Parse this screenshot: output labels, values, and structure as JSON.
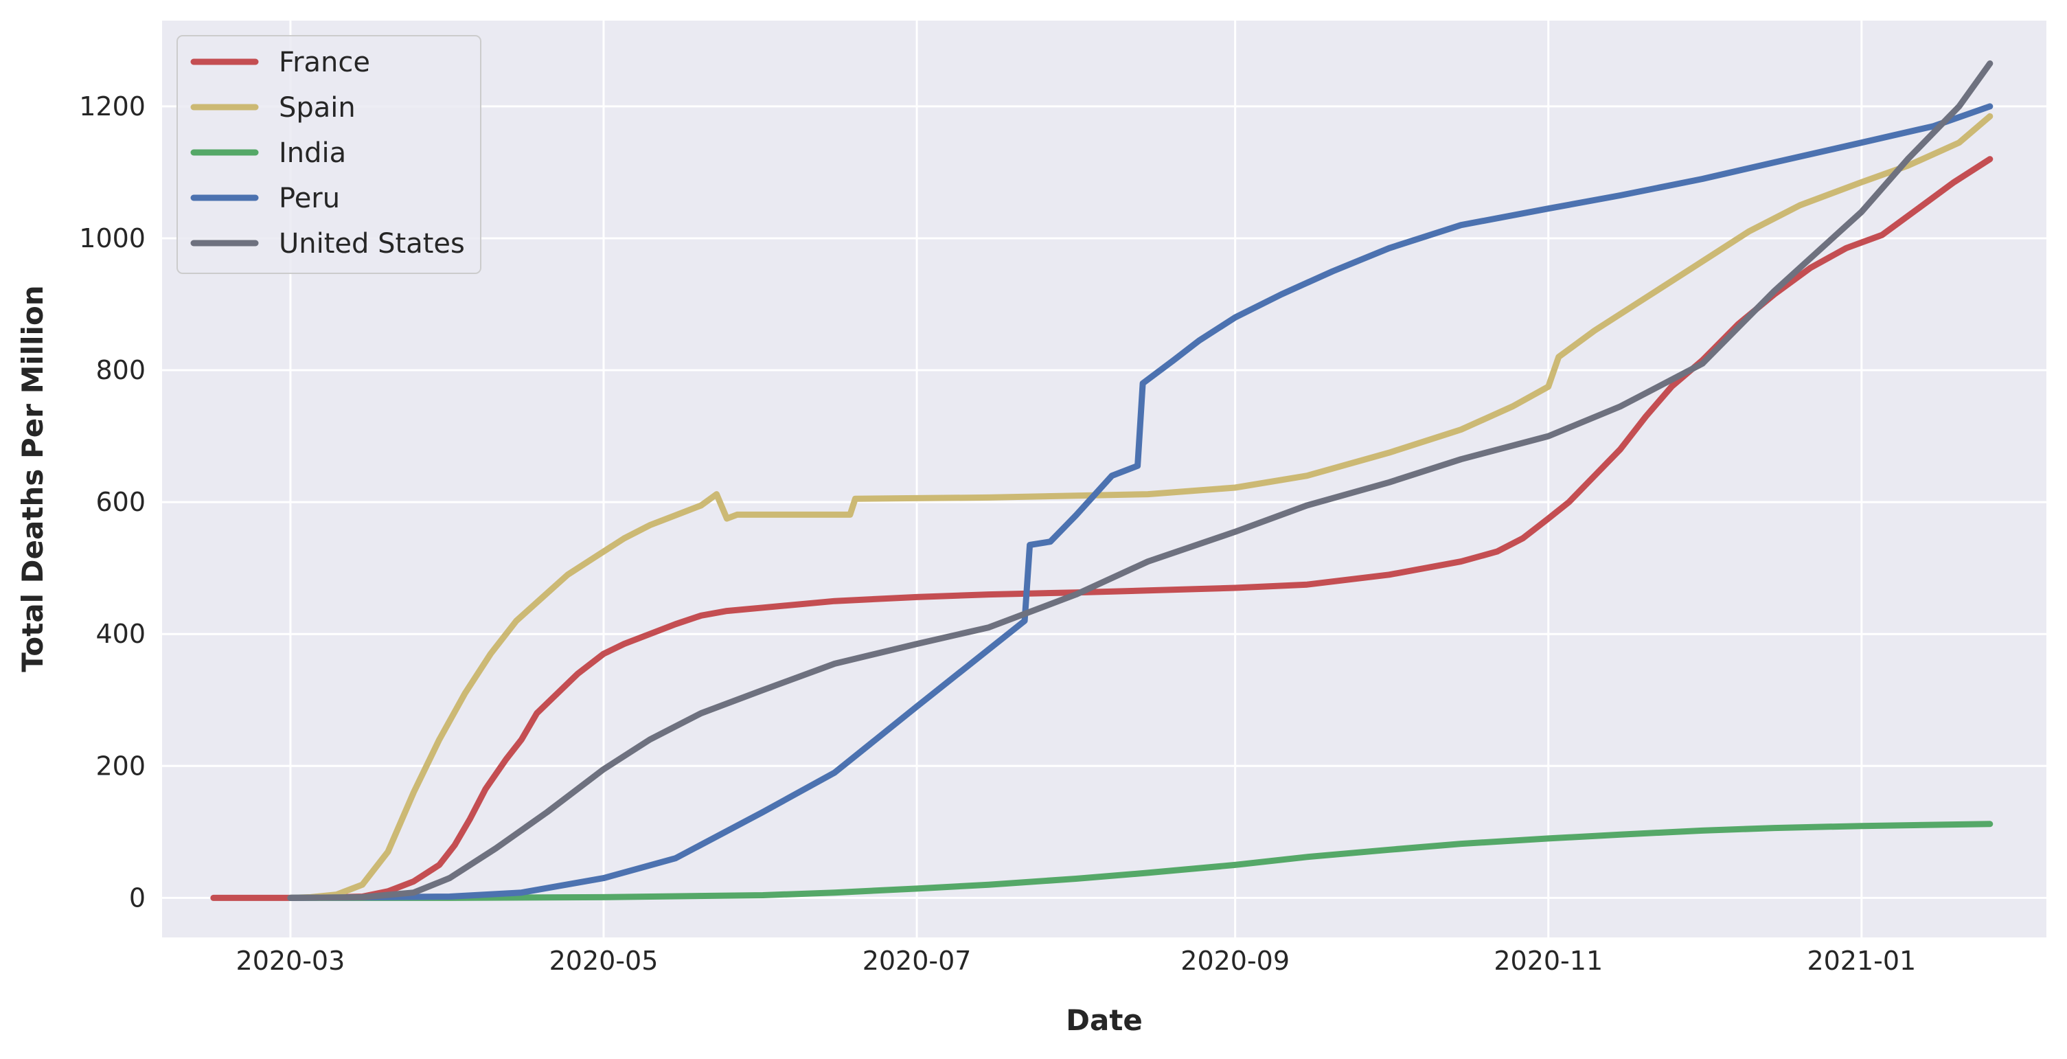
{
  "chart_data": {
    "type": "line",
    "title": "",
    "xlabel": "Date",
    "ylabel": "Total Deaths Per Million",
    "x_axis_type": "date",
    "xlim": [
      "2020-02-05",
      "2021-02-06"
    ],
    "ylim": [
      -60,
      1330
    ],
    "x_ticks": [
      "2020-03-01",
      "2020-05-01",
      "2020-07-01",
      "2020-09-01",
      "2020-11-01",
      "2021-01-01"
    ],
    "x_tick_labels": [
      "2020-03",
      "2020-05",
      "2020-07",
      "2020-09",
      "2020-11",
      "2021-01"
    ],
    "y_ticks": [
      0,
      200,
      400,
      600,
      800,
      1000,
      1200
    ],
    "y_tick_labels": [
      "0",
      "200",
      "400",
      "600",
      "800",
      "1000",
      "1200"
    ],
    "grid": true,
    "background": "#eaeaf2",
    "legend_position": "upper-left",
    "series": [
      {
        "name": "France",
        "color": "#c44e52",
        "points": [
          [
            "2020-02-15",
            0
          ],
          [
            "2020-03-01",
            0
          ],
          [
            "2020-03-10",
            1
          ],
          [
            "2020-03-15",
            2
          ],
          [
            "2020-03-20",
            10
          ],
          [
            "2020-03-25",
            25
          ],
          [
            "2020-03-30",
            50
          ],
          [
            "2020-04-02",
            80
          ],
          [
            "2020-04-05",
            120
          ],
          [
            "2020-04-08",
            165
          ],
          [
            "2020-04-12",
            210
          ],
          [
            "2020-04-15",
            240
          ],
          [
            "2020-04-18",
            280
          ],
          [
            "2020-04-22",
            310
          ],
          [
            "2020-04-26",
            340
          ],
          [
            "2020-05-01",
            370
          ],
          [
            "2020-05-05",
            385
          ],
          [
            "2020-05-10",
            400
          ],
          [
            "2020-05-15",
            415
          ],
          [
            "2020-05-20",
            428
          ],
          [
            "2020-05-25",
            435
          ],
          [
            "2020-06-01",
            440
          ],
          [
            "2020-06-15",
            450
          ],
          [
            "2020-07-01",
            456
          ],
          [
            "2020-07-15",
            460
          ],
          [
            "2020-08-01",
            463
          ],
          [
            "2020-08-15",
            466
          ],
          [
            "2020-09-01",
            470
          ],
          [
            "2020-09-15",
            475
          ],
          [
            "2020-10-01",
            490
          ],
          [
            "2020-10-15",
            510
          ],
          [
            "2020-10-22",
            525
          ],
          [
            "2020-10-27",
            545
          ],
          [
            "2020-11-01",
            575
          ],
          [
            "2020-11-05",
            600
          ],
          [
            "2020-11-10",
            640
          ],
          [
            "2020-11-15",
            680
          ],
          [
            "2020-11-20",
            730
          ],
          [
            "2020-11-25",
            775
          ],
          [
            "2020-12-01",
            815
          ],
          [
            "2020-12-08",
            870
          ],
          [
            "2020-12-15",
            915
          ],
          [
            "2020-12-22",
            955
          ],
          [
            "2020-12-29",
            985
          ],
          [
            "2021-01-05",
            1005
          ],
          [
            "2021-01-12",
            1045
          ],
          [
            "2021-01-19",
            1085
          ],
          [
            "2021-01-26",
            1120
          ]
        ]
      },
      {
        "name": "Spain",
        "color": "#ccb974",
        "points": [
          [
            "2020-03-01",
            0
          ],
          [
            "2020-03-05",
            1
          ],
          [
            "2020-03-10",
            5
          ],
          [
            "2020-03-15",
            20
          ],
          [
            "2020-03-20",
            70
          ],
          [
            "2020-03-25",
            160
          ],
          [
            "2020-03-30",
            240
          ],
          [
            "2020-04-04",
            310
          ],
          [
            "2020-04-09",
            370
          ],
          [
            "2020-04-14",
            420
          ],
          [
            "2020-04-19",
            455
          ],
          [
            "2020-04-24",
            490
          ],
          [
            "2020-04-30",
            520
          ],
          [
            "2020-05-05",
            545
          ],
          [
            "2020-05-10",
            565
          ],
          [
            "2020-05-15",
            580
          ],
          [
            "2020-05-20",
            595
          ],
          [
            "2020-05-23",
            612
          ],
          [
            "2020-05-25",
            575
          ],
          [
            "2020-05-27",
            581
          ],
          [
            "2020-06-10",
            581
          ],
          [
            "2020-06-18",
            581
          ],
          [
            "2020-06-19",
            605
          ],
          [
            "2020-07-15",
            607
          ],
          [
            "2020-08-15",
            612
          ],
          [
            "2020-09-01",
            622
          ],
          [
            "2020-09-15",
            640
          ],
          [
            "2020-10-01",
            675
          ],
          [
            "2020-10-15",
            710
          ],
          [
            "2020-10-25",
            745
          ],
          [
            "2020-11-01",
            775
          ],
          [
            "2020-11-03",
            820
          ],
          [
            "2020-11-10",
            860
          ],
          [
            "2020-11-20",
            910
          ],
          [
            "2020-12-01",
            965
          ],
          [
            "2020-12-10",
            1010
          ],
          [
            "2020-12-20",
            1050
          ],
          [
            "2021-01-01",
            1085
          ],
          [
            "2021-01-10",
            1110
          ],
          [
            "2021-01-20",
            1145
          ],
          [
            "2021-01-26",
            1185
          ]
        ]
      },
      {
        "name": "India",
        "color": "#55a868",
        "points": [
          [
            "2020-03-01",
            0
          ],
          [
            "2020-04-01",
            0
          ],
          [
            "2020-05-01",
            1
          ],
          [
            "2020-06-01",
            4
          ],
          [
            "2020-06-15",
            8
          ],
          [
            "2020-07-01",
            14
          ],
          [
            "2020-07-15",
            20
          ],
          [
            "2020-08-01",
            29
          ],
          [
            "2020-08-15",
            38
          ],
          [
            "2020-09-01",
            50
          ],
          [
            "2020-09-15",
            62
          ],
          [
            "2020-10-01",
            73
          ],
          [
            "2020-10-15",
            82
          ],
          [
            "2020-11-01",
            90
          ],
          [
            "2020-11-15",
            96
          ],
          [
            "2020-12-01",
            102
          ],
          [
            "2020-12-15",
            106
          ],
          [
            "2021-01-01",
            109
          ],
          [
            "2021-01-26",
            112
          ]
        ]
      },
      {
        "name": "Peru",
        "color": "#4c72b0",
        "points": [
          [
            "2020-03-01",
            0
          ],
          [
            "2020-04-01",
            2
          ],
          [
            "2020-04-15",
            8
          ],
          [
            "2020-05-01",
            30
          ],
          [
            "2020-05-15",
            60
          ],
          [
            "2020-06-01",
            130
          ],
          [
            "2020-06-15",
            190
          ],
          [
            "2020-07-01",
            290
          ],
          [
            "2020-07-22",
            420
          ],
          [
            "2020-07-23",
            535
          ],
          [
            "2020-07-27",
            540
          ],
          [
            "2020-08-01",
            580
          ],
          [
            "2020-08-08",
            640
          ],
          [
            "2020-08-13",
            655
          ],
          [
            "2020-08-14",
            780
          ],
          [
            "2020-08-20",
            815
          ],
          [
            "2020-08-25",
            845
          ],
          [
            "2020-09-01",
            880
          ],
          [
            "2020-09-10",
            915
          ],
          [
            "2020-09-20",
            950
          ],
          [
            "2020-10-01",
            985
          ],
          [
            "2020-10-15",
            1020
          ],
          [
            "2020-11-01",
            1045
          ],
          [
            "2020-11-15",
            1065
          ],
          [
            "2020-12-01",
            1090
          ],
          [
            "2020-12-15",
            1115
          ],
          [
            "2021-01-01",
            1145
          ],
          [
            "2021-01-15",
            1170
          ],
          [
            "2021-01-26",
            1200
          ]
        ]
      },
      {
        "name": "United States",
        "color": "#6e717f",
        "points": [
          [
            "2020-03-01",
            0
          ],
          [
            "2020-03-15",
            1
          ],
          [
            "2020-03-25",
            8
          ],
          [
            "2020-04-01",
            30
          ],
          [
            "2020-04-10",
            75
          ],
          [
            "2020-04-20",
            130
          ],
          [
            "2020-05-01",
            195
          ],
          [
            "2020-05-10",
            240
          ],
          [
            "2020-05-20",
            280
          ],
          [
            "2020-06-01",
            315
          ],
          [
            "2020-06-15",
            355
          ],
          [
            "2020-07-01",
            385
          ],
          [
            "2020-07-15",
            410
          ],
          [
            "2020-08-01",
            460
          ],
          [
            "2020-08-15",
            510
          ],
          [
            "2020-09-01",
            555
          ],
          [
            "2020-09-15",
            595
          ],
          [
            "2020-10-01",
            630
          ],
          [
            "2020-10-15",
            665
          ],
          [
            "2020-11-01",
            700
          ],
          [
            "2020-11-15",
            745
          ],
          [
            "2020-12-01",
            810
          ],
          [
            "2020-12-15",
            920
          ],
          [
            "2021-01-01",
            1040
          ],
          [
            "2021-01-10",
            1120
          ],
          [
            "2021-01-20",
            1200
          ],
          [
            "2021-01-26",
            1265
          ]
        ]
      }
    ]
  }
}
